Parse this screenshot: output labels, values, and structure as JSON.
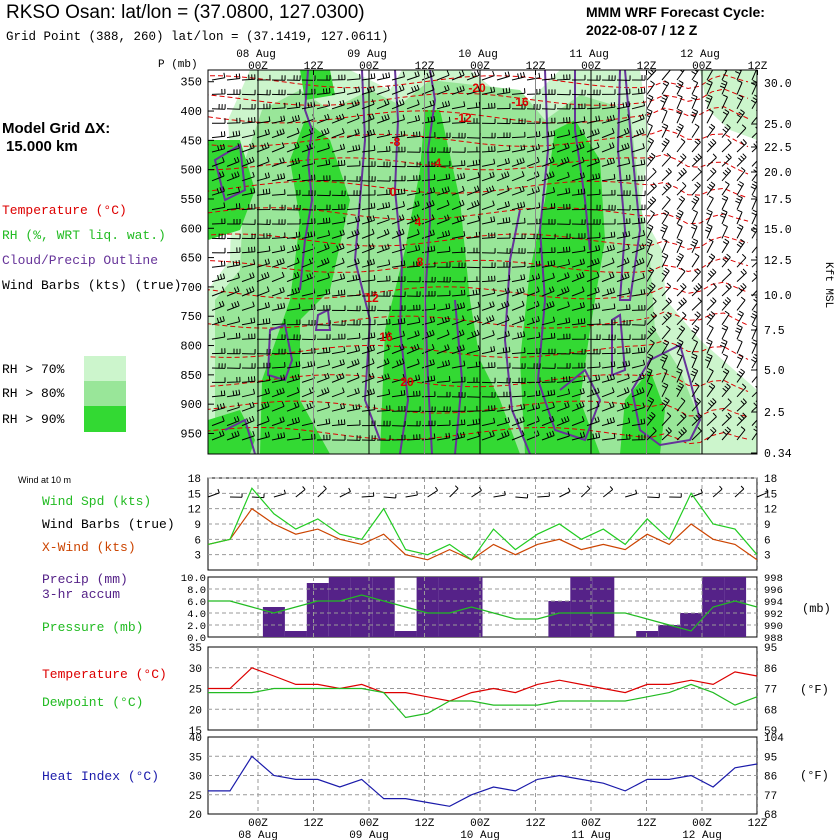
{
  "header": {
    "station_title": "RKSO Osan:  lat/lon = (37.0800, 127.0300)",
    "grid_point": "Grid Point (388, 260) lat/lon = (37.1419, 127.0611)",
    "model_title": "MMM WRF Forecast Cycle:",
    "cycle": "2022-08-07 / 12  Z"
  },
  "sidebar": {
    "model_grid": "Model Grid ΔX:",
    "grid_spacing": "15.000 km",
    "legend_temperature": "Temperature (°C)",
    "legend_rh": "RH (%, WRT liq. wat.)",
    "legend_cloud": "Cloud/Precip Outline",
    "legend_barbs": "Wind Barbs (kts) (true)",
    "rh70": "RH > 70%",
    "rh80": "RH > 80%",
    "rh90": "RH > 90%",
    "wind_at": "Wind at 10 m",
    "wind_spd": "Wind Spd (kts)",
    "wind_barbs": "Wind Barbs (true)",
    "xwind": "X-Wind (kts)",
    "precip": "Precip (mm)",
    "precip_accum": "3-hr accum",
    "pressure": "Pressure (mb)",
    "temperature": "Temperature (°C)",
    "dewpoint": "Dewpoint (°C)",
    "heat_index": "Heat Index (°C)"
  },
  "colors": {
    "rh70": "#ccf5cc",
    "rh80": "#99e699",
    "rh90": "#33d933",
    "temperature": "#dd0000",
    "rh_text": "#22bb22",
    "cloud": "#663399",
    "precip_bar": "#552288",
    "xwind": "#cc4400",
    "heat": "#1a1aaa"
  },
  "time_axis": {
    "dates_top": [
      "08 Aug",
      "09 Aug",
      "10 Aug",
      "11 Aug",
      "12 Aug"
    ],
    "dates_bottom": [
      "08 Aug",
      "09 Aug",
      "10 Aug",
      "11 Aug",
      "12 Aug"
    ],
    "hours": [
      "00Z",
      "12Z",
      "00Z",
      "12Z",
      "00Z",
      "12Z",
      "00Z",
      "12Z",
      "00Z",
      "12Z"
    ]
  },
  "chart_data": [
    {
      "type": "heatmap",
      "name": "time-height cross section",
      "y_title": "P (mb)",
      "y_ticks": [
        350,
        400,
        450,
        500,
        550,
        600,
        650,
        700,
        750,
        800,
        850,
        900,
        950
      ],
      "right_ticks": [
        "30.0",
        "25.0",
        "22.5",
        "20.0",
        "17.5",
        "15.0",
        "12.5",
        "10.0",
        "7.5",
        "5.0",
        "2.5",
        "0.34"
      ],
      "right_label": "Kft MSL",
      "temperature_labels": [
        "-20",
        "-16",
        "-12",
        "-8",
        "-4",
        "0",
        "4",
        "8",
        "12",
        "16",
        "20"
      ]
    },
    {
      "type": "line",
      "name": "10 m wind",
      "ylim": [
        0,
        18
      ],
      "y_ticks": [
        3,
        6,
        9,
        12,
        15,
        18
      ],
      "series": [
        {
          "name": "Wind Spd (kts)",
          "values": [
            5,
            6,
            16,
            11,
            8,
            10,
            7,
            6,
            12,
            4,
            3,
            5,
            2,
            8,
            4,
            7,
            9,
            6,
            8,
            5,
            10,
            6,
            15,
            9,
            8,
            3
          ]
        },
        {
          "name": "X-Wind (kts)",
          "values": [
            5,
            6,
            12,
            9,
            7,
            8,
            6,
            5,
            7,
            3,
            2,
            4,
            2,
            5,
            3,
            5,
            6,
            4,
            5,
            4,
            7,
            5,
            9,
            6,
            5,
            2
          ]
        }
      ]
    },
    {
      "type": "bar",
      "name": "precip and pressure",
      "ylim": [
        0,
        10
      ],
      "left_ticks": [
        "0.0",
        "2.0",
        "4.0",
        "6.0",
        "8.0",
        "10.0"
      ],
      "right_ticks": [
        "988",
        "990",
        "992",
        "994",
        "996",
        "998"
      ],
      "precip": [
        0,
        0,
        0,
        5,
        1,
        9,
        10,
        10,
        10,
        1,
        10,
        10,
        10,
        0,
        0,
        0,
        6,
        10,
        10,
        0,
        1,
        2,
        4,
        10,
        10,
        0
      ],
      "pressure": [
        994,
        994,
        993,
        992,
        993,
        994,
        994,
        995,
        994,
        993,
        992,
        992,
        993,
        992,
        991,
        991,
        992,
        992,
        992,
        992,
        991,
        990,
        989,
        993,
        994,
        993
      ]
    },
    {
      "type": "line",
      "name": "temperature and dewpoint",
      "ylim": [
        15,
        35
      ],
      "y_ticks": [
        15,
        20,
        25,
        30,
        35
      ],
      "right_ticks": [
        "59",
        "68",
        "77",
        "86",
        "95"
      ],
      "right_unit": "(°F)",
      "series": [
        {
          "name": "Temperature (°C)",
          "values": [
            25,
            25,
            30,
            28,
            26,
            26,
            25,
            26,
            24,
            24,
            23,
            22,
            24,
            25,
            24,
            26,
            27,
            26,
            25,
            24,
            26,
            26,
            27,
            26,
            29,
            28
          ]
        },
        {
          "name": "Dewpoint (°C)",
          "values": [
            24,
            24,
            24,
            25,
            25,
            25,
            25,
            25,
            24,
            18,
            19,
            22,
            22,
            21,
            21,
            21,
            22,
            22,
            22,
            22,
            23,
            24,
            26,
            24,
            21,
            23
          ]
        }
      ]
    },
    {
      "type": "line",
      "name": "heat index",
      "ylim": [
        20,
        40
      ],
      "y_ticks": [
        20,
        25,
        30,
        35,
        40
      ],
      "right_ticks": [
        "68",
        "77",
        "86",
        "95",
        "104"
      ],
      "right_unit": "(°F)",
      "series": [
        {
          "name": "Heat Index (°C)",
          "values": [
            26,
            26,
            35,
            30,
            29,
            29,
            27,
            29,
            24,
            24,
            23,
            22,
            25,
            27,
            26,
            29,
            30,
            29,
            28,
            26,
            29,
            29,
            30,
            27,
            32,
            33
          ]
        }
      ]
    }
  ]
}
